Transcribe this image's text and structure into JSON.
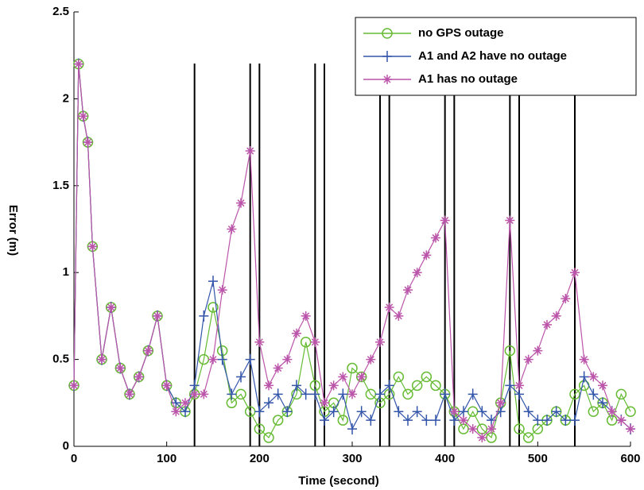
{
  "chart_data": {
    "type": "line",
    "xlabel": "Time (second)",
    "ylabel": "Error (m)",
    "x": [
      0,
      5,
      10,
      15,
      20,
      30,
      40,
      50,
      60,
      70,
      80,
      90,
      100,
      110,
      120,
      130,
      140,
      150,
      160,
      170,
      180,
      190,
      200,
      210,
      220,
      230,
      240,
      250,
      260,
      270,
      280,
      290,
      300,
      310,
      320,
      330,
      340,
      350,
      360,
      370,
      380,
      390,
      400,
      410,
      420,
      430,
      440,
      450,
      460,
      470,
      480,
      490,
      500,
      510,
      520,
      530,
      540,
      550,
      560,
      570,
      580,
      590,
      600
    ],
    "series": [
      {
        "name": "no GPS outage",
        "color": "#66bb33",
        "marker": "circle",
        "values": [
          0.35,
          2.2,
          1.9,
          1.75,
          1.15,
          0.5,
          0.8,
          0.45,
          0.3,
          0.4,
          0.55,
          0.75,
          0.35,
          0.25,
          0.2,
          0.3,
          0.5,
          0.8,
          0.55,
          0.25,
          0.3,
          0.2,
          0.1,
          0.05,
          0.15,
          0.2,
          0.3,
          0.6,
          0.35,
          0.2,
          0.25,
          0.15,
          0.45,
          0.4,
          0.3,
          0.25,
          0.3,
          0.4,
          0.3,
          0.35,
          0.4,
          0.35,
          0.3,
          0.2,
          0.1,
          0.2,
          0.1,
          0.05,
          0.25,
          0.55,
          0.1,
          0.05,
          0.1,
          0.15,
          0.2,
          0.15,
          0.3,
          0.35,
          0.2,
          0.25,
          0.15,
          0.3,
          0.2
        ]
      },
      {
        "name": "A1 and A2 have no outage",
        "color": "#3355aa",
        "marker": "plus",
        "values": [
          0.35,
          2.2,
          1.9,
          1.75,
          1.15,
          0.5,
          0.8,
          0.45,
          0.3,
          0.4,
          0.55,
          0.75,
          0.35,
          0.25,
          0.2,
          0.35,
          0.75,
          0.95,
          0.5,
          0.3,
          0.4,
          0.5,
          0.2,
          0.25,
          0.3,
          0.2,
          0.35,
          0.3,
          0.3,
          0.15,
          0.2,
          0.3,
          0.1,
          0.2,
          0.15,
          0.3,
          0.35,
          0.2,
          0.15,
          0.2,
          0.15,
          0.15,
          0.3,
          0.15,
          0.2,
          0.3,
          0.2,
          0.15,
          0.2,
          0.35,
          0.3,
          0.2,
          0.15,
          0.15,
          0.2,
          0.15,
          0.15,
          0.4,
          0.3,
          0.25,
          0.2,
          0.15,
          0.1
        ]
      },
      {
        "name": "A1 has no outage",
        "color": "#bb55aa",
        "marker": "star",
        "values": [
          0.35,
          2.2,
          1.9,
          1.75,
          1.15,
          0.5,
          0.8,
          0.45,
          0.3,
          0.4,
          0.55,
          0.75,
          0.35,
          0.2,
          0.25,
          0.3,
          0.3,
          0.5,
          0.9,
          1.25,
          1.4,
          1.7,
          0.6,
          0.35,
          0.45,
          0.5,
          0.65,
          0.75,
          0.6,
          0.25,
          0.35,
          0.4,
          0.3,
          0.4,
          0.5,
          0.6,
          0.8,
          0.75,
          0.9,
          1.0,
          1.1,
          1.2,
          1.3,
          0.2,
          0.15,
          0.1,
          0.05,
          0.1,
          0.25,
          1.3,
          0.35,
          0.5,
          0.55,
          0.7,
          0.75,
          0.85,
          1.0,
          0.5,
          0.4,
          0.35,
          0.2,
          0.15,
          0.1
        ]
      }
    ],
    "outage_lines": [
      130,
      190,
      200,
      260,
      270,
      330,
      340,
      400,
      410,
      470,
      480,
      540
    ],
    "xlim": [
      0,
      600
    ],
    "xticks": [
      0,
      100,
      200,
      300,
      400,
      500,
      600
    ],
    "ylim": [
      0,
      2.5
    ],
    "yticks": [
      0,
      0.5,
      1,
      1.5,
      2,
      2.5
    ],
    "legend": "upper right"
  }
}
